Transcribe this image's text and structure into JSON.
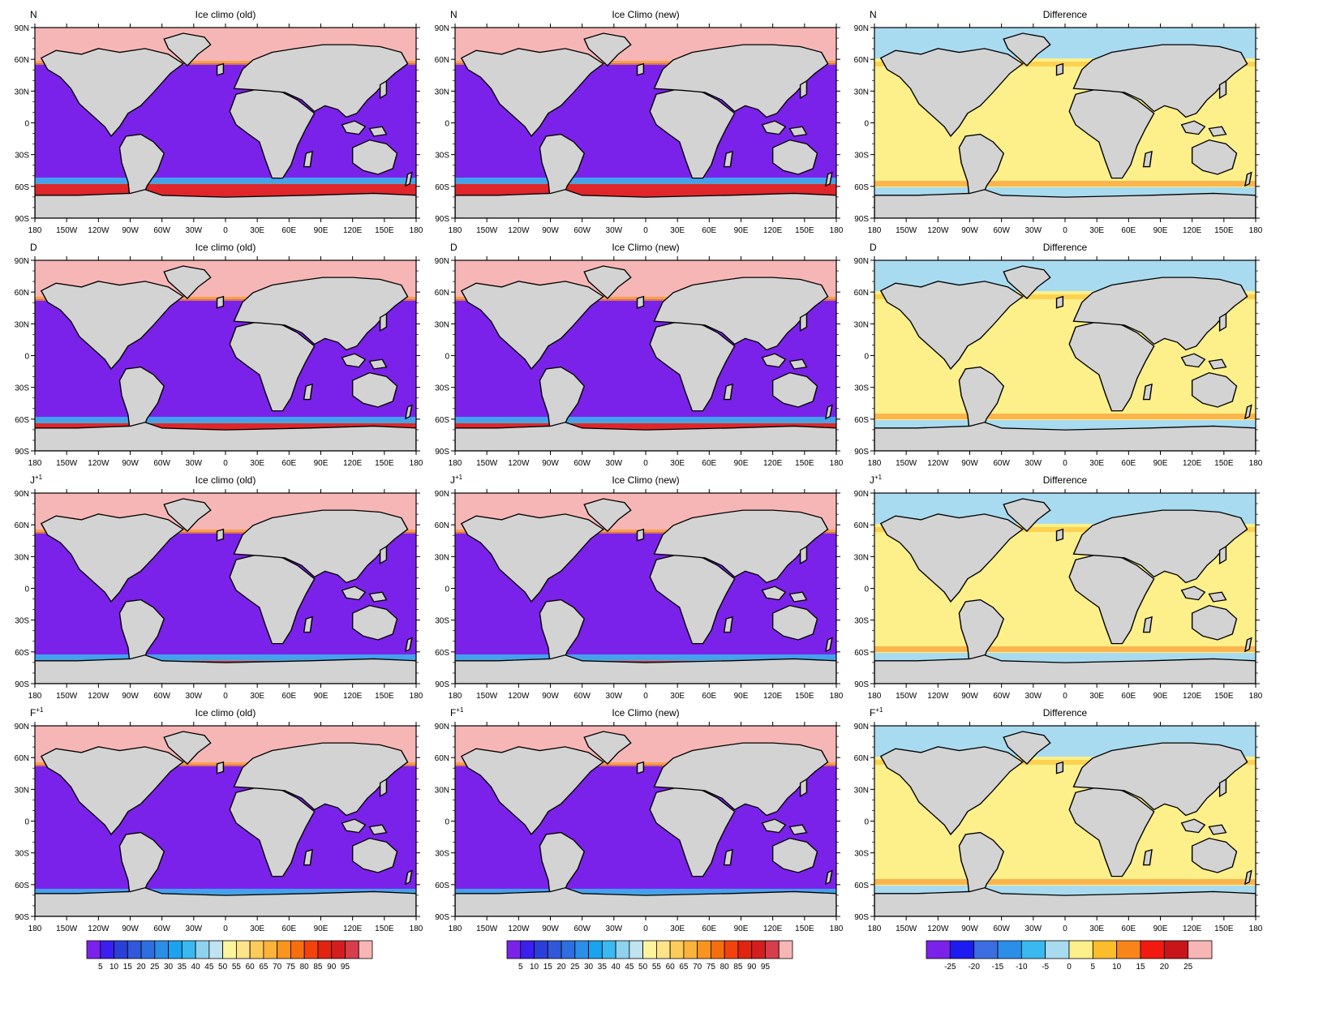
{
  "figure": {
    "rows": [
      {
        "label": "N"
      },
      {
        "label": "D"
      },
      {
        "label": "J",
        "label_sup": "+1"
      },
      {
        "label": "F",
        "label_sup": "+1"
      }
    ],
    "columns": [
      {
        "title": "Ice climo (old)"
      },
      {
        "title": "Ice Climo (new)"
      },
      {
        "title": "Difference"
      }
    ],
    "lat_ticks": [
      "90N",
      "60N",
      "30N",
      "0",
      "30S",
      "60S",
      "90S"
    ],
    "lon_ticks": [
      "180",
      "150W",
      "120W",
      "90W",
      "60W",
      "30W",
      "0",
      "30E",
      "60E",
      "90E",
      "120E",
      "150E",
      "180"
    ]
  },
  "colorbars": {
    "concentration": {
      "labels": [
        "5",
        "10",
        "15",
        "20",
        "25",
        "30",
        "35",
        "40",
        "45",
        "50",
        "55",
        "60",
        "65",
        "70",
        "75",
        "80",
        "85",
        "90",
        "95"
      ],
      "colors": [
        "#7b22ea",
        "#3a1ff0",
        "#2a3fd9",
        "#3158d8",
        "#2d6fe0",
        "#2b8ee8",
        "#1aa3ee",
        "#3ab9f0",
        "#8fd2ee",
        "#bfe3ef",
        "#fdf59e",
        "#fde38a",
        "#fccb5a",
        "#fbb33a",
        "#f9951e",
        "#f66f0e",
        "#f2430c",
        "#e12410",
        "#d41e1e",
        "#d73d4a",
        "#f7b6b6"
      ]
    },
    "difference": {
      "labels": [
        "-25",
        "-20",
        "-15",
        "-10",
        "-5",
        "0",
        "5",
        "10",
        "15",
        "20",
        "25"
      ],
      "colors": [
        "#7b22ea",
        "#1c1cf0",
        "#3b6ee0",
        "#2b8ee8",
        "#3ab9f0",
        "#a8dbf0",
        "#fdf08a",
        "#fbbe2a",
        "#f9851a",
        "#f21a10",
        "#c9141a",
        "#f7b6b6"
      ]
    }
  },
  "map_colors": {
    "ocean": "#7b22ea",
    "land": "#d3d3d3",
    "north_ice": "#f7b6b6",
    "south_ice": "#e0262a",
    "diff_ocean": "#fdf08a",
    "diff_polar": "#a8dbf0"
  }
}
